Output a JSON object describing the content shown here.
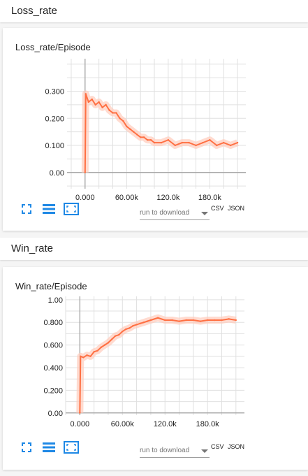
{
  "sections": [
    {
      "header": "Loss_rate",
      "card": {
        "title": "Loss_rate/Episode",
        "select_placeholder": "run to download",
        "csv_label": "CSV",
        "json_label": "JSON"
      }
    },
    {
      "header": "Win_rate",
      "card": {
        "title": "Win_rate/Episode",
        "select_placeholder": "run to download",
        "csv_label": "CSV",
        "json_label": "JSON"
      }
    }
  ],
  "colors": {
    "line": "#ff7043",
    "line_light": "#ffccbc",
    "icon_blue": "#1e88e5",
    "grid": "#e0e0e0",
    "axis": "#9e9e9e"
  },
  "icons": [
    "fit-screen-icon",
    "list-icon",
    "focus-icon"
  ],
  "chart_data": [
    {
      "type": "line",
      "title": "Loss_rate/Episode",
      "xlabel": "",
      "ylabel": "",
      "xlim": [
        -26000,
        232000
      ],
      "ylim": [
        -0.06,
        0.42
      ],
      "xticks": [
        0,
        60000,
        120000,
        180000
      ],
      "xtick_labels": [
        "0.000",
        "60.00k",
        "120.0k",
        "180.0k"
      ],
      "yticks": [
        0,
        0.1,
        0.2,
        0.3
      ],
      "ytick_labels": [
        "0.00",
        "0.100",
        "0.200",
        "0.300"
      ],
      "grid": true,
      "series": [
        {
          "x": [
            0,
            1000,
            5000,
            10000,
            15000,
            20000,
            25000,
            30000,
            35000,
            40000,
            45000,
            50000,
            55000,
            60000,
            65000,
            70000,
            75000,
            80000,
            85000,
            90000,
            95000,
            100000,
            110000,
            120000,
            130000,
            140000,
            150000,
            160000,
            170000,
            180000,
            190000,
            200000,
            210000,
            220000
          ],
          "y": [
            0.0,
            0.29,
            0.26,
            0.27,
            0.25,
            0.26,
            0.24,
            0.25,
            0.23,
            0.22,
            0.22,
            0.2,
            0.19,
            0.17,
            0.16,
            0.15,
            0.14,
            0.13,
            0.13,
            0.12,
            0.12,
            0.11,
            0.11,
            0.12,
            0.1,
            0.11,
            0.11,
            0.1,
            0.11,
            0.12,
            0.1,
            0.11,
            0.1,
            0.11
          ]
        }
      ]
    },
    {
      "type": "line",
      "title": "Win_rate/Episode",
      "xlabel": "",
      "ylabel": "",
      "xlim": [
        -20000,
        232000
      ],
      "ylim": [
        -0.02,
        1.03
      ],
      "xticks": [
        0,
        60000,
        120000,
        180000
      ],
      "xtick_labels": [
        "0.000",
        "60.00k",
        "120.0k",
        "180.0k"
      ],
      "yticks": [
        0,
        0.2,
        0.4,
        0.6,
        0.8,
        1.0
      ],
      "ytick_labels": [
        "0.00",
        "0.200",
        "0.400",
        "0.600",
        "0.800",
        "1.00"
      ],
      "grid": true,
      "series": [
        {
          "x": [
            0,
            1000,
            5000,
            10000,
            15000,
            20000,
            25000,
            30000,
            35000,
            40000,
            45000,
            50000,
            55000,
            60000,
            65000,
            70000,
            75000,
            80000,
            85000,
            90000,
            95000,
            100000,
            110000,
            120000,
            130000,
            140000,
            150000,
            160000,
            170000,
            180000,
            190000,
            200000,
            210000,
            220000
          ],
          "y": [
            0.0,
            0.5,
            0.49,
            0.51,
            0.5,
            0.54,
            0.55,
            0.58,
            0.6,
            0.62,
            0.65,
            0.68,
            0.69,
            0.72,
            0.74,
            0.75,
            0.77,
            0.78,
            0.79,
            0.8,
            0.81,
            0.82,
            0.84,
            0.82,
            0.82,
            0.81,
            0.82,
            0.82,
            0.81,
            0.82,
            0.82,
            0.82,
            0.83,
            0.82
          ]
        }
      ]
    }
  ]
}
